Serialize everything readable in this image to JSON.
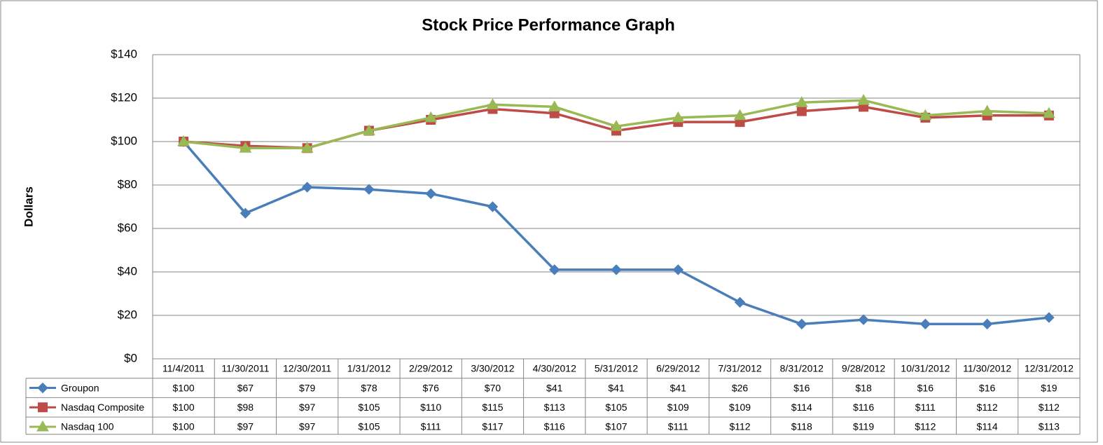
{
  "chart_data": {
    "type": "line",
    "title": "Stock Price Performance Graph",
    "y_label": "Dollars",
    "categories": [
      "11/4/2011",
      "11/30/2011",
      "12/30/2011",
      "1/31/2012",
      "2/29/2012",
      "3/30/2012",
      "4/30/2012",
      "5/31/2012",
      "6/29/2012",
      "7/31/2012",
      "8/31/2012",
      "9/28/2012",
      "10/31/2012",
      "11/30/2012",
      "12/31/2012"
    ],
    "ylim": [
      0,
      140
    ],
    "yticks": [
      {
        "value": 0,
        "label": "$0"
      },
      {
        "value": 20,
        "label": "$20"
      },
      {
        "value": 40,
        "label": "$40"
      },
      {
        "value": 60,
        "label": "$60"
      },
      {
        "value": 80,
        "label": "$80"
      },
      {
        "value": 100,
        "label": "$100"
      },
      {
        "value": 120,
        "label": "$120"
      },
      {
        "value": 140,
        "label": "$140"
      }
    ],
    "grid": true,
    "data_table": true,
    "series": [
      {
        "name": "Groupon",
        "color": "#4a7ebb",
        "marker": "diamond",
        "values": [
          100,
          67,
          79,
          78,
          76,
          70,
          41,
          41,
          41,
          26,
          16,
          18,
          16,
          16,
          19
        ],
        "value_labels": [
          "$100",
          "$67",
          "$79",
          "$78",
          "$76",
          "$70",
          "$41",
          "$41",
          "$41",
          "$26",
          "$16",
          "$18",
          "$16",
          "$16",
          "$19"
        ]
      },
      {
        "name": "Nasdaq Composite",
        "color": "#be4b48",
        "marker": "square",
        "values": [
          100,
          98,
          97,
          105,
          110,
          115,
          113,
          105,
          109,
          109,
          114,
          116,
          111,
          112,
          112
        ],
        "value_labels": [
          "$100",
          "$98",
          "$97",
          "$105",
          "$110",
          "$115",
          "$113",
          "$105",
          "$109",
          "$109",
          "$114",
          "$116",
          "$111",
          "$112",
          "$112"
        ]
      },
      {
        "name": "Nasdaq 100",
        "color": "#98b954",
        "marker": "triangle",
        "values": [
          100,
          97,
          97,
          105,
          111,
          117,
          116,
          107,
          111,
          112,
          118,
          119,
          112,
          114,
          113
        ],
        "value_labels": [
          "$100",
          "$97",
          "$97",
          "$105",
          "$111",
          "$117",
          "$116",
          "$107",
          "$111",
          "$112",
          "$118",
          "$119",
          "$112",
          "$114",
          "$113"
        ]
      }
    ]
  }
}
